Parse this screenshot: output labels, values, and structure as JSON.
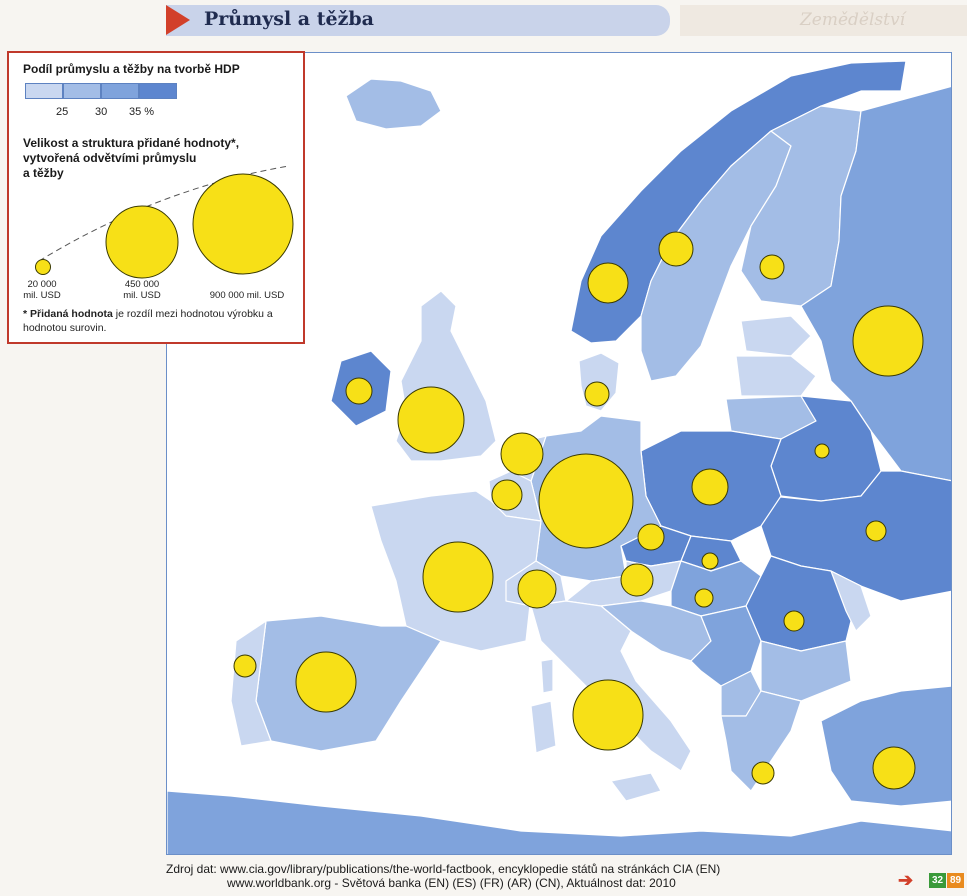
{
  "header": {
    "title": "Průmysl a těžba"
  },
  "side_ghost": {
    "text": "Zemědělství"
  },
  "legend": {
    "gdp_title": "Podíl průmyslu a těžby na tvorbě HDP",
    "ticks": [
      "25",
      "30",
      "35 %"
    ],
    "size_title_1": "Velikost a struktura přidané hodnoty*,",
    "size_title_2": "vytvořená odvětvími průmyslu",
    "size_title_3": "a těžby",
    "bubble_small_1": "20 000",
    "bubble_small_2": "mil. USD",
    "bubble_mid_1": "450 000",
    "bubble_mid_2": "mil. USD",
    "bubble_large": "900 000 mil. USD",
    "footnote_bold": "* Přidaná hodnota",
    "footnote_rest": " je rozdíl mezi hodnotou výrobku a hodnotou surovin."
  },
  "source": {
    "line1": "Zdroj dat: www.cia.gov/library/publications/the-world-factbook, encyklopedie států na stránkách CIA (EN)",
    "line2": "www.worldbank.org - Světová banka (EN) (ES) (FR) (AR) (CN), Aktuálnost dat: 2010"
  },
  "pages": {
    "current": "32",
    "next": "89"
  },
  "colors": {
    "sea": "#ffffff",
    "c1": "#c9d7f0",
    "c2": "#a3bde6",
    "c3": "#7fa3dc",
    "c4": "#5d86cf",
    "bubble": "#f7e017"
  }
}
